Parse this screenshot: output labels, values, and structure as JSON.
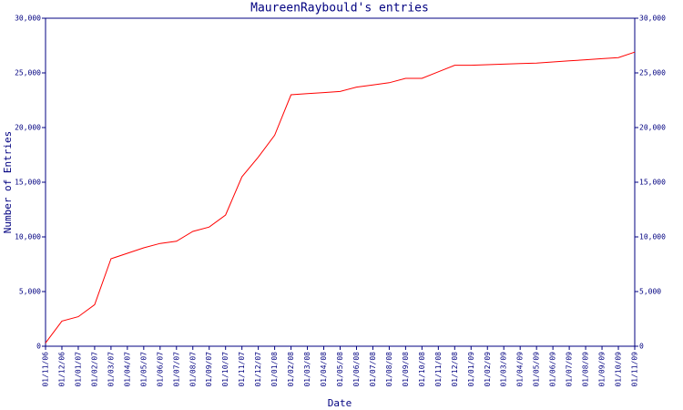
{
  "chart_data": {
    "type": "line",
    "title": "MaureenRaybould's entries",
    "x_label": "Date",
    "y_label": "Number of Entries",
    "categories": [
      "01/11/06",
      "01/12/06",
      "01/01/07",
      "01/02/07",
      "01/03/07",
      "01/04/07",
      "01/05/07",
      "01/06/07",
      "01/07/07",
      "01/08/07",
      "01/09/07",
      "01/10/07",
      "01/11/07",
      "01/12/07",
      "01/01/08",
      "01/02/08",
      "01/03/08",
      "01/04/08",
      "01/05/08",
      "01/06/08",
      "01/07/08",
      "01/08/08",
      "01/09/08",
      "01/10/08",
      "01/11/08",
      "01/12/08",
      "01/01/09",
      "01/02/09",
      "01/03/09",
      "01/04/09",
      "01/05/09",
      "01/06/09",
      "01/07/09",
      "01/08/09",
      "01/09/09",
      "01/10/09",
      "01/11/09"
    ],
    "series": [
      {
        "color": "#ff0000",
        "values": [
          300,
          2300,
          2700,
          3800,
          8000,
          8500,
          9000,
          9400,
          9600,
          10500,
          10900,
          12000,
          15500,
          17300,
          19300,
          23000,
          23100,
          23200,
          23300,
          23700,
          23900,
          24100,
          24500,
          24500,
          25100,
          25700,
          25700,
          25750,
          25800,
          25850,
          25900,
          26000,
          26100,
          26200,
          26300,
          26400,
          26900
        ]
      }
    ],
    "ylim": [
      0,
      30000
    ],
    "yticks": [
      0,
      {
        "value": 5000,
        "label": "5,000"
      },
      {
        "value": 10000,
        "label": "10,000"
      },
      {
        "value": 15000,
        "label": "15,000"
      },
      {
        "value": 20000,
        "label": "20,000"
      },
      {
        "value": 25000,
        "label": "25,000"
      },
      {
        "value": 30000,
        "label": "30,000"
      }
    ],
    "axis_color": "#000080"
  }
}
